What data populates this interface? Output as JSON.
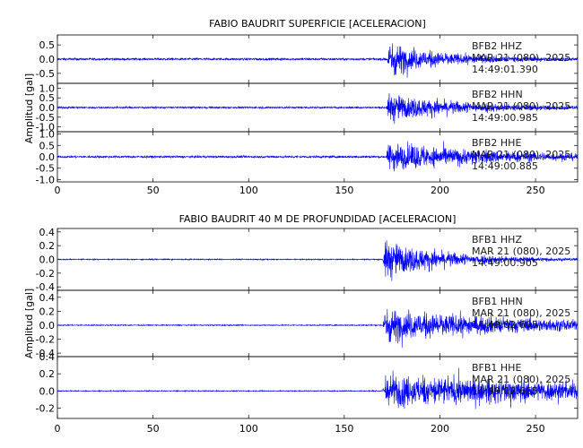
{
  "chart_data": [
    {
      "type": "line",
      "title": "FABIO BAUDRIT SUPERFICIE [ACELERACION]",
      "ylabel": "Amplitud [gal]",
      "xlim": [
        0,
        272
      ],
      "x_ticks": [
        0,
        50,
        100,
        150,
        200,
        250
      ],
      "color": "#0000ff",
      "traces": [
        {
          "station": "BFB2 HHZ",
          "date": "MAR 21 (080), 2025",
          "time": "14:49:01.390",
          "ylim": [
            -0.85,
            0.85
          ],
          "y_ticks": [
            0.5,
            0.0,
            -0.5
          ],
          "y_tick_labels": [
            "0.5",
            "0.0",
            "-0.5"
          ],
          "noise_amp": 0.04,
          "event_onset": 172,
          "peak_amp": 0.75,
          "decay": 0.035
        },
        {
          "station": "BFB2 HHN",
          "date": "MAR 21 (080), 2025",
          "time": "14:49:00.985",
          "ylim": [
            -1.25,
            1.25
          ],
          "y_ticks": [
            1.0,
            0.5,
            0.0,
            -0.5,
            -1.0
          ],
          "y_tick_labels": [
            "1.0",
            "0.5",
            "0.0",
            "-0.5",
            "-1.0"
          ],
          "noise_amp": 0.05,
          "event_onset": 172,
          "peak_amp": 0.9,
          "decay": 0.025
        },
        {
          "station": "BFB2 HHE",
          "date": "MAR 21 (080), 2025",
          "time": "14:49:00.885",
          "ylim": [
            -1.1,
            1.1
          ],
          "y_ticks": [
            1.0,
            0.5,
            0.0,
            -0.5,
            -1.0
          ],
          "y_tick_labels": [
            "1.0",
            "0.5",
            "0.0",
            "-0.5",
            "-1.0"
          ],
          "noise_amp": 0.05,
          "event_onset": 172,
          "peak_amp": 0.85,
          "decay": 0.018
        }
      ]
    },
    {
      "type": "line",
      "title": "FABIO BAUDRIT 40 M DE PROFUNDIDAD [ACELERACION]",
      "ylabel": "Amplitud [gal]",
      "xlim": [
        0,
        272
      ],
      "x_ticks": [
        0,
        50,
        100,
        150,
        200,
        250
      ],
      "color": "#0000ff",
      "traces": [
        {
          "station": "BFB1 HHZ",
          "date": "MAR 21 (080), 2025",
          "time": "14:49:00.905",
          "ylim": [
            -0.45,
            0.45
          ],
          "y_ticks": [
            0.4,
            0.2,
            0.0,
            -0.2,
            -0.4
          ],
          "y_tick_labels": [
            "0.4",
            "0.2",
            "0.0",
            "-0.2",
            "-0.4"
          ],
          "noise_amp": 0.008,
          "event_onset": 170,
          "peak_amp": 0.36,
          "decay": 0.03
        },
        {
          "station": "BFB1 HHN",
          "date": "MAR 21 (080), 2025",
          "time": "14:49:02.695",
          "ylim": [
            -0.45,
            0.5
          ],
          "y_ticks": [
            0.4,
            0.2,
            0.0,
            -0.2,
            -0.4
          ],
          "y_tick_labels": [
            "0.4",
            "0.2",
            "0.0",
            "-0.2",
            "-0.4"
          ],
          "noise_amp": 0.008,
          "event_onset": 170,
          "peak_amp": 0.3,
          "decay": 0.012
        },
        {
          "station": "BFB1 HHE",
          "date": "MAR 21 (080), 2025",
          "time": "14:49:02.665",
          "ylim": [
            -0.32,
            0.4
          ],
          "y_ticks": [
            0.4,
            0.2,
            0.0,
            -0.2
          ],
          "y_tick_labels": [
            "0.4",
            "0.2",
            "0.0",
            "-0.2"
          ],
          "noise_amp": 0.006,
          "event_onset": 170,
          "peak_amp": 0.25,
          "decay": 0.006
        }
      ]
    }
  ]
}
